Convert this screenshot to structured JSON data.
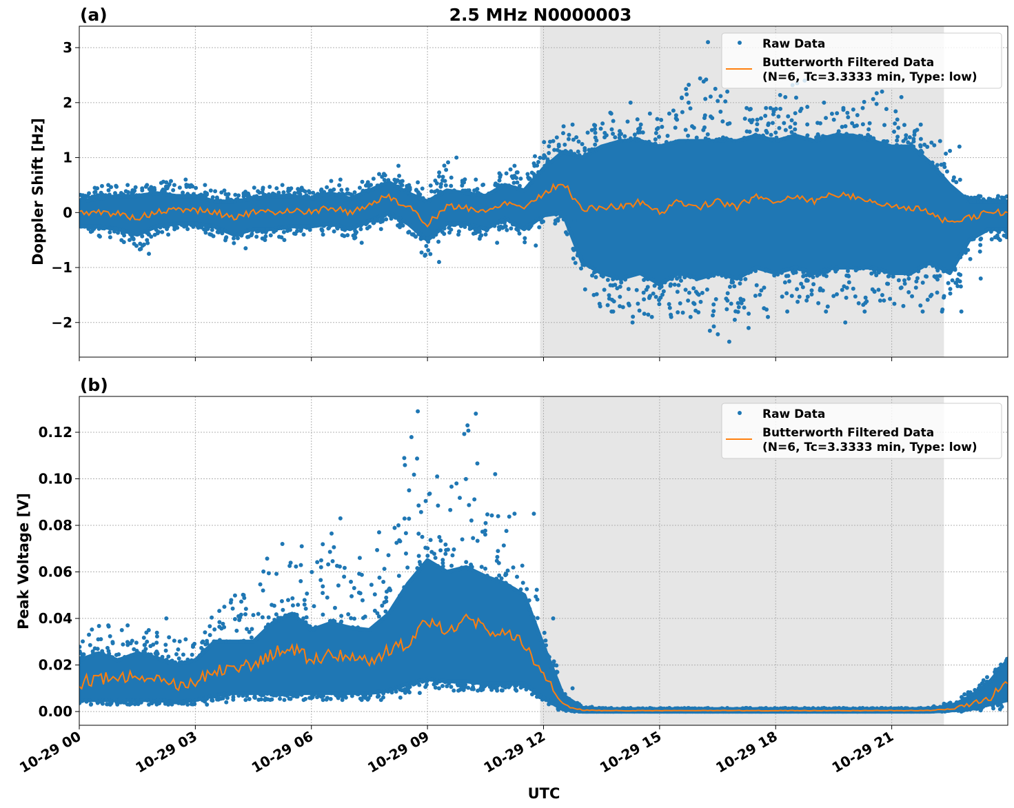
{
  "chart_data": [
    {
      "type": "scatter",
      "panel_label": "(a)",
      "title": "2.5 MHz N0000003",
      "xlabel": "",
      "ylabel": "Doppler Shift [Hz]",
      "xlim_hours": [
        0,
        24
      ],
      "ylim": [
        -2.63,
        3.39
      ],
      "yticks": [
        3,
        2,
        1,
        0,
        -1,
        -2
      ],
      "ytick_labels": [
        "3",
        "2",
        "1",
        "0",
        "−1",
        "−2"
      ],
      "grid": true,
      "legend": {
        "placement": "top-right",
        "entries": [
          "Raw Data",
          "Butterworth Filtered Data",
          "(N=6, Tc=3.3333 min, Type: low)"
        ]
      },
      "shaded_region_hours": [
        11.91,
        22.35
      ],
      "hours": [
        0,
        0.5,
        1,
        1.5,
        2,
        2.5,
        3,
        3.5,
        4,
        4.5,
        5,
        5.5,
        6,
        6.5,
        7,
        7.5,
        8,
        8.5,
        9,
        9.5,
        10,
        10.5,
        11,
        11.5,
        12,
        12.5,
        13,
        13.5,
        14,
        14.5,
        15,
        15.5,
        16,
        16.5,
        17,
        17.5,
        18,
        18.5,
        19,
        19.5,
        20,
        20.5,
        21,
        21.5,
        22,
        22.5,
        23,
        23.5,
        24
      ],
      "filtered": [
        0,
        0,
        -0.02,
        -0.1,
        0,
        0.05,
        0.05,
        0,
        -0.08,
        0,
        0,
        0.05,
        0,
        0.1,
        0,
        0.15,
        0.3,
        0.1,
        -0.2,
        0.1,
        0.1,
        0,
        0.2,
        0.1,
        0.35,
        0.55,
        0.05,
        0.1,
        0.1,
        0.2,
        0,
        0.2,
        0.1,
        0.2,
        0.1,
        0.3,
        0.2,
        0.3,
        0.2,
        0.35,
        0.3,
        0.2,
        0.1,
        0.1,
        0,
        -0.2,
        -0.1,
        0,
        0
      ],
      "raw_core_low": [
        -0.25,
        -0.25,
        -0.3,
        -0.4,
        -0.25,
        -0.2,
        -0.2,
        -0.25,
        -0.4,
        -0.3,
        -0.3,
        -0.25,
        -0.25,
        -0.2,
        -0.3,
        -0.15,
        0,
        -0.2,
        -0.5,
        -0.2,
        -0.2,
        -0.3,
        -0.1,
        -0.3,
        -0.05,
        0,
        -0.9,
        -1.1,
        -1.2,
        -1.1,
        -1.3,
        -1.1,
        -1.2,
        -1.1,
        -1.2,
        -1.0,
        -1.1,
        -1.0,
        -1.1,
        -1.0,
        -1.0,
        -1.0,
        -1.1,
        -1.1,
        -0.9,
        -1.1,
        -0.5,
        -0.3,
        -0.3
      ],
      "raw_core_high": [
        0.2,
        0.25,
        0.3,
        0.3,
        0.35,
        0.3,
        0.3,
        0.2,
        0.2,
        0.25,
        0.3,
        0.3,
        0.25,
        0.35,
        0.25,
        0.4,
        0.55,
        0.35,
        0.2,
        0.4,
        0.35,
        0.3,
        0.5,
        0.4,
        0.8,
        1.1,
        1.0,
        1.2,
        1.3,
        1.3,
        1.2,
        1.3,
        1.3,
        1.3,
        1.3,
        1.4,
        1.3,
        1.4,
        1.3,
        1.4,
        1.4,
        1.3,
        1.2,
        1.2,
        0.9,
        0.5,
        0.2,
        0.2,
        0.2
      ],
      "raw_min": [
        -0.35,
        -0.45,
        -0.5,
        -0.75,
        -0.4,
        -0.3,
        -0.3,
        -0.45,
        -0.65,
        -0.5,
        -0.5,
        -0.4,
        -0.4,
        -0.3,
        -0.55,
        -0.3,
        -0.1,
        -0.4,
        -0.9,
        -0.4,
        -0.35,
        -0.55,
        -0.3,
        -0.6,
        -0.2,
        -0.15,
        -1.5,
        -1.8,
        -2.0,
        -1.9,
        -1.9,
        -1.9,
        -2.15,
        -2.35,
        -2.1,
        -1.9,
        -1.8,
        -1.6,
        -1.8,
        -2.0,
        -1.8,
        -1.6,
        -1.7,
        -1.8,
        -1.8,
        -1.8,
        -1.2,
        -0.5,
        -0.45
      ],
      "raw_max": [
        0.35,
        0.5,
        0.5,
        0.5,
        0.55,
        0.6,
        0.5,
        0.4,
        0.35,
        0.45,
        0.5,
        0.45,
        0.4,
        0.6,
        0.45,
        0.7,
        0.85,
        0.55,
        0.4,
        1.0,
        0.6,
        0.5,
        0.85,
        0.7,
        1.3,
        1.6,
        1.5,
        1.8,
        2.0,
        1.8,
        1.8,
        2.0,
        3.1,
        2.2,
        1.9,
        1.9,
        2.1,
        2.4,
        2.0,
        1.9,
        1.9,
        2.2,
        2.1,
        1.6,
        1.3,
        1.2,
        0.3,
        0.3,
        0.3
      ]
    },
    {
      "type": "scatter",
      "panel_label": "(b)",
      "title": "",
      "xlabel": "UTC",
      "ylabel": "Peak Voltage [V]",
      "xlim_hours": [
        0,
        24
      ],
      "ylim": [
        -0.0059,
        0.1354
      ],
      "yticks": [
        0.12,
        0.1,
        0.08,
        0.06,
        0.04,
        0.02,
        0.0
      ],
      "ytick_labels": [
        "0.12",
        "0.10",
        "0.08",
        "0.06",
        "0.04",
        "0.02",
        "0.00"
      ],
      "xticks_hours": [
        0,
        3,
        6,
        9,
        12,
        15,
        18,
        21
      ],
      "xtick_labels": [
        "10-29 00",
        "10-29 03",
        "10-29 06",
        "10-29 09",
        "10-29 12",
        "10-29 15",
        "10-29 18",
        "10-29 21"
      ],
      "grid": true,
      "legend": {
        "placement": "top-right",
        "entries": [
          "Raw Data",
          "Butterworth Filtered Data",
          "(N=6, Tc=3.3333 min, Type: low)"
        ]
      },
      "shaded_region_hours": [
        11.91,
        22.35
      ],
      "hours": [
        0,
        0.5,
        1,
        1.5,
        2,
        2.5,
        3,
        3.5,
        4,
        4.5,
        5,
        5.5,
        6,
        6.5,
        7,
        7.5,
        8,
        8.5,
        9,
        9.5,
        10,
        10.5,
        11,
        11.5,
        12,
        12.5,
        13,
        13.5,
        14,
        14.5,
        15,
        15.5,
        16,
        16.5,
        17,
        17.5,
        18,
        18.5,
        19,
        19.5,
        20,
        20.5,
        21,
        21.5,
        22,
        22.5,
        23,
        23.5,
        24
      ],
      "filtered": [
        0.012,
        0.015,
        0.013,
        0.016,
        0.015,
        0.012,
        0.013,
        0.018,
        0.02,
        0.019,
        0.025,
        0.027,
        0.022,
        0.025,
        0.024,
        0.022,
        0.026,
        0.03,
        0.04,
        0.035,
        0.04,
        0.036,
        0.033,
        0.03,
        0.015,
        0.003,
        0.0006,
        0.0004,
        0.0004,
        0.0004,
        0.0004,
        0.0004,
        0.0004,
        0.0004,
        0.0004,
        0.0004,
        0.0004,
        0.0004,
        0.0004,
        0.0004,
        0.0004,
        0.0004,
        0.0004,
        0.0004,
        0.0005,
        0.001,
        0.003,
        0.006,
        0.012
      ],
      "raw_core_low": [
        0.005,
        0.005,
        0.005,
        0.005,
        0.005,
        0.004,
        0.005,
        0.007,
        0.008,
        0.008,
        0.008,
        0.008,
        0.008,
        0.008,
        0.008,
        0.008,
        0.009,
        0.012,
        0.014,
        0.013,
        0.013,
        0.012,
        0.012,
        0.012,
        0.006,
        0.001,
        0,
        0,
        0,
        0,
        0,
        0,
        0,
        0,
        0,
        0,
        0,
        0,
        0,
        0,
        0,
        0,
        0,
        0,
        0,
        0.0005,
        0.001,
        0.003,
        0.005
      ],
      "raw_core_high": [
        0.022,
        0.025,
        0.022,
        0.025,
        0.023,
        0.02,
        0.022,
        0.03,
        0.03,
        0.03,
        0.038,
        0.042,
        0.035,
        0.038,
        0.036,
        0.035,
        0.042,
        0.055,
        0.065,
        0.06,
        0.062,
        0.058,
        0.055,
        0.05,
        0.028,
        0.007,
        0.0015,
        0.001,
        0.001,
        0.001,
        0.001,
        0.001,
        0.001,
        0.001,
        0.001,
        0.001,
        0.001,
        0.001,
        0.001,
        0.001,
        0.001,
        0.001,
        0.001,
        0.001,
        0.0012,
        0.002,
        0.006,
        0.012,
        0.022
      ],
      "raw_min": [
        0.003,
        0.003,
        0.003,
        0.003,
        0.003,
        0.003,
        0.003,
        0.004,
        0.005,
        0.005,
        0.005,
        0.005,
        0.005,
        0.005,
        0.005,
        0.005,
        0.006,
        0.008,
        0.01,
        0.009,
        0.009,
        0.009,
        0.009,
        0.009,
        0.003,
        0,
        0,
        0,
        0,
        0,
        0,
        0,
        0,
        0,
        0,
        0,
        0,
        0,
        0,
        0,
        0,
        0,
        0,
        0,
        0,
        0,
        0.0005,
        0.001,
        0.002
      ],
      "raw_max": [
        0.033,
        0.037,
        0.037,
        0.03,
        0.04,
        0.031,
        0.034,
        0.045,
        0.05,
        0.052,
        0.072,
        0.071,
        0.062,
        0.083,
        0.066,
        0.077,
        0.08,
        0.129,
        0.101,
        0.098,
        0.128,
        0.102,
        0.085,
        0.085,
        0.04,
        0.01,
        0.002,
        0.0015,
        0.0015,
        0.0015,
        0.0015,
        0.0015,
        0.0015,
        0.0015,
        0.0015,
        0.0015,
        0.0015,
        0.0015,
        0.0015,
        0.0015,
        0.0015,
        0.0015,
        0.0015,
        0.0015,
        0.002,
        0.004,
        0.01,
        0.016,
        0.023
      ]
    }
  ],
  "colors": {
    "raw": "#1f77b4",
    "filtered": "#ff7f0e",
    "shade": "#e6e6e6"
  }
}
